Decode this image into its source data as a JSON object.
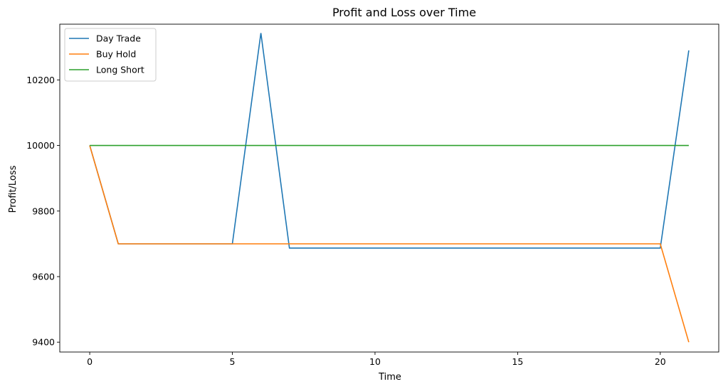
{
  "chart_data": {
    "type": "line",
    "title": "Profit and Loss over Time",
    "xlabel": "Time",
    "ylabel": "Profit/Loss",
    "xlim": [
      -1.05,
      22.05
    ],
    "ylim": [
      9370,
      10370
    ],
    "xticks": [
      0,
      5,
      10,
      15,
      20
    ],
    "yticks": [
      9400,
      9600,
      9800,
      10000,
      10200
    ],
    "grid": false,
    "legend_position": "top-left",
    "x": [
      0,
      1,
      2,
      3,
      4,
      5,
      6,
      7,
      8,
      9,
      10,
      11,
      12,
      13,
      14,
      15,
      16,
      17,
      18,
      19,
      20,
      21
    ],
    "series": [
      {
        "name": "Day Trade",
        "color": "#1f77b4",
        "values": [
          10000,
          9700,
          9700,
          9700,
          9700,
          9700,
          10343,
          9687,
          9687,
          9687,
          9687,
          9687,
          9687,
          9687,
          9687,
          9687,
          9687,
          9687,
          9687,
          9687,
          9687,
          10290
        ]
      },
      {
        "name": "Buy Hold",
        "color": "#ff7f0e",
        "values": [
          10000,
          9700,
          9700,
          9700,
          9700,
          9700,
          9700,
          9700,
          9700,
          9700,
          9700,
          9700,
          9700,
          9700,
          9700,
          9700,
          9700,
          9700,
          9700,
          9700,
          9700,
          9400
        ]
      },
      {
        "name": "Long Short",
        "color": "#2ca02c",
        "values": [
          10000,
          10000,
          10000,
          10000,
          10000,
          10000,
          10000,
          10000,
          10000,
          10000,
          10000,
          10000,
          10000,
          10000,
          10000,
          10000,
          10000,
          10000,
          10000,
          10000,
          10000,
          10000
        ]
      }
    ]
  }
}
